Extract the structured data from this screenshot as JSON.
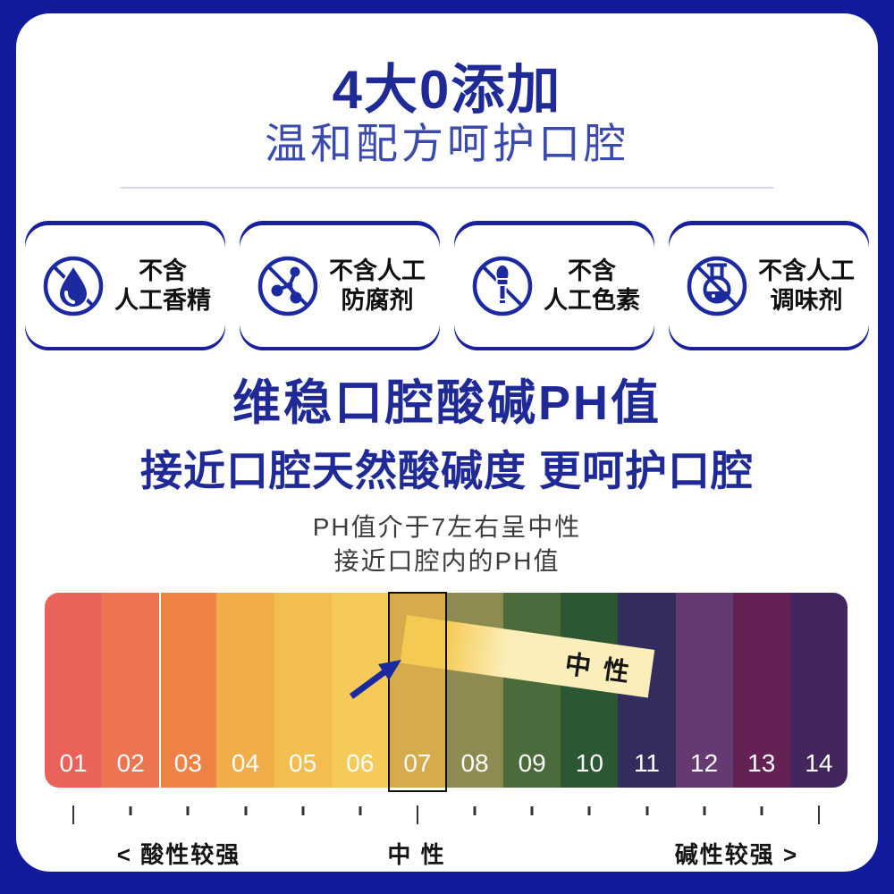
{
  "frame": {
    "color": "#111a9b"
  },
  "header": {
    "title": "4大0添加",
    "subtitle": "温和配方呵护口腔"
  },
  "badges": [
    {
      "icon": "no-fragrance-drop-icon",
      "line1": "不含",
      "line2": "人工香精"
    },
    {
      "icon": "no-preservative-molecule-icon",
      "line1": "不含人工",
      "line2": "防腐剂"
    },
    {
      "icon": "no-colorant-dropper-icon",
      "line1": "不含",
      "line2": "人工色素"
    },
    {
      "icon": "no-flavoring-flask-icon",
      "line1": "不含人工",
      "line2": "调味剂"
    }
  ],
  "section": {
    "heading1": "维稳口腔酸碱PH值",
    "heading2": "接近口腔天然酸碱度 更呵护口腔",
    "note1": "PH值介于7左右呈中性",
    "note2": "接近口腔内的PH值"
  },
  "chart_data": {
    "type": "heatmap",
    "title": "pH scale 01-14",
    "categories": [
      "01",
      "02",
      "03",
      "04",
      "05",
      "06",
      "07",
      "08",
      "09",
      "10",
      "11",
      "12",
      "13",
      "14"
    ],
    "colors": [
      "#ea625a",
      "#ed7450",
      "#ee8244",
      "#f0ad49",
      "#f3bd4f",
      "#f6ca58",
      "#d5ab4c",
      "#8d8b51",
      "#4b6b3c",
      "#2b5733",
      "#322d5c",
      "#653a72",
      "#642254",
      "#44265e"
    ],
    "highlighted_category": "07",
    "strip_label": "中 性",
    "strip_colors": [
      "#f5ca52",
      "#fbeebb"
    ],
    "axis": {
      "acid_label": "< 酸性较强",
      "neutral_label": "中 性",
      "alkaline_label": "碱性较强 >"
    },
    "tall_ticks": [
      "01",
      "07",
      "14"
    ],
    "accent_navy": "#1b2a9e"
  }
}
